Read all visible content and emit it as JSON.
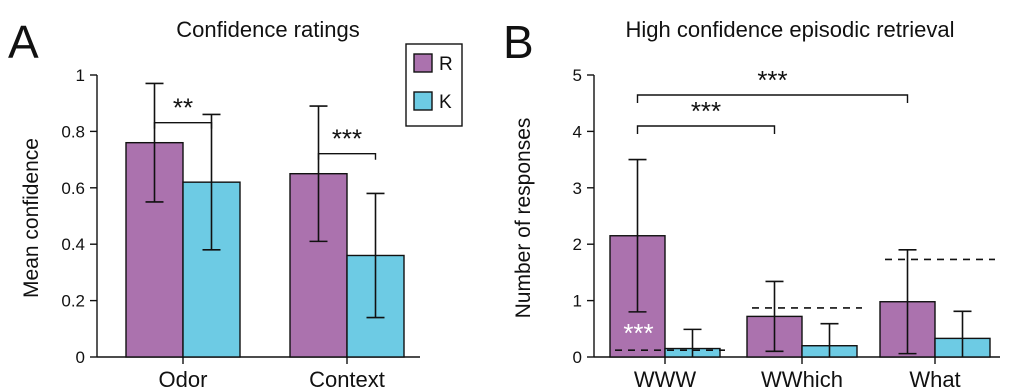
{
  "colors": {
    "R": "#ab72ae",
    "K": "#6dcbe4"
  },
  "panel_a": {
    "letter": "A"
  },
  "panel_b": {
    "letter": "B"
  },
  "chart_data": [
    {
      "type": "bar",
      "title": "Confidence ratings",
      "xlabel": "",
      "ylabel": "Mean confidence",
      "categories": [
        "Odor",
        "Context"
      ],
      "ylim": [
        0,
        1
      ],
      "yticks": [
        "0",
        "0.2",
        "0.4",
        "0.6",
        "0.8",
        "1"
      ],
      "series": [
        {
          "name": "R",
          "values": [
            0.76,
            0.65
          ],
          "error": [
            0.21,
            0.24
          ]
        },
        {
          "name": "K",
          "values": [
            0.62,
            0.36
          ],
          "error": [
            0.24,
            0.22
          ]
        }
      ],
      "significance": [
        {
          "category": "Odor",
          "label": "**"
        },
        {
          "category": "Context",
          "label": "***"
        }
      ],
      "legend": {
        "placement": "top-right",
        "entries": [
          "R",
          "K"
        ]
      }
    },
    {
      "type": "bar",
      "title": "High confidence episodic retrieval",
      "xlabel": "",
      "ylabel": "Number of responses",
      "categories": [
        "WWW",
        "WWhich",
        "What"
      ],
      "ylim": [
        0,
        5
      ],
      "yticks": [
        "0",
        "1",
        "2",
        "3",
        "4",
        "5"
      ],
      "series": [
        {
          "name": "R",
          "values": [
            2.15,
            0.72,
            0.98
          ],
          "error": [
            1.35,
            0.62,
            0.92
          ]
        },
        {
          "name": "K",
          "values": [
            0.15,
            0.2,
            0.33
          ],
          "error": [
            0.34,
            0.39,
            0.48
          ]
        }
      ],
      "chance_levels": [
        0.12,
        0.87,
        1.73
      ],
      "significance": [
        {
          "from": "WWW",
          "to": "WWhich",
          "label": "***"
        },
        {
          "from": "WWW",
          "to": "What",
          "label": "***"
        },
        {
          "category": "WWW",
          "label": "***",
          "position": "inside-bar"
        }
      ]
    }
  ]
}
